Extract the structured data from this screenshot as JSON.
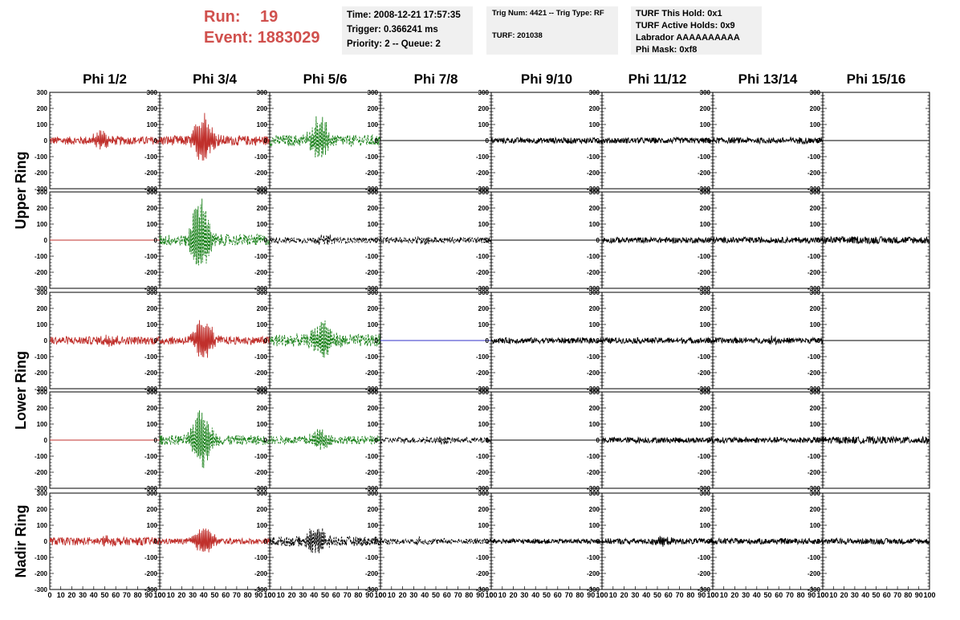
{
  "header": {
    "run_label": "Run:",
    "run_value": "19",
    "event_label": "Event:",
    "event_value": "1883029",
    "info1": [
      "Time: 2008-12-21 17:57:35",
      "Trigger: 0.366241 ms",
      "Priority: 2 -- Queue: 2"
    ],
    "info2": [
      "Trig Num: 4421 -- Trig Type: RF",
      "",
      "TURF: 201038"
    ],
    "info3": [
      "TURF This Hold: 0x1",
      "TURF Active Holds: 0x9",
      "Labrador AAAAAAAAAA",
      "Phi Mask: 0xf8"
    ]
  },
  "chart_data": {
    "type": "line",
    "columns": [
      "Phi 1/2",
      "Phi 3/4",
      "Phi 5/6",
      "Phi 7/8",
      "Phi 9/10",
      "Phi 11/12",
      "Phi 13/14",
      "Phi 15/16"
    ],
    "ring_labels": [
      {
        "label": "Upper Ring",
        "rows": [
          0,
          1
        ]
      },
      {
        "label": "Lower Ring",
        "rows": [
          2,
          3
        ]
      },
      {
        "label": "Nadir Ring",
        "rows": [
          4
        ]
      }
    ],
    "xlim": [
      0,
      100
    ],
    "ylim": [
      -300,
      300
    ],
    "y_ticks": [
      "300",
      "200",
      "100",
      "0",
      "-100",
      "-200",
      "-300"
    ],
    "x_tick_values": [
      0,
      10,
      20,
      30,
      40,
      50,
      60,
      70,
      80,
      90,
      100
    ],
    "x_tick_labels": [
      "0",
      "10",
      "20",
      "30",
      "40",
      "50",
      "60",
      "70",
      "80",
      "90",
      "100"
    ],
    "colors": {
      "red": "#c0302c",
      "green": "#188018",
      "black": "#000000",
      "blue": "#3030c8"
    },
    "panels": [
      [
        {
          "color": "red",
          "amp": 25,
          "burst": 55,
          "burst_center": 48,
          "dash": false
        },
        {
          "color": "red",
          "amp": 30,
          "burst": 180,
          "burst_center": 40,
          "dash": false
        },
        {
          "color": "green",
          "amp": 35,
          "burst": 150,
          "burst_center": 45,
          "dash": true
        },
        {
          "color": "black",
          "amp": 0,
          "burst": 0,
          "burst_center": 0,
          "dash": false
        },
        {
          "color": "black",
          "amp": 18,
          "burst": 0,
          "burst_center": 0,
          "dash": false
        },
        {
          "color": "black",
          "amp": 18,
          "burst": 0,
          "burst_center": 0,
          "dash": false
        },
        {
          "color": "black",
          "amp": 18,
          "burst": 10,
          "burst_center": 75,
          "dash": false
        },
        {
          "color": "black",
          "amp": 0,
          "burst": 0,
          "burst_center": 0,
          "dash": false
        }
      ],
      [
        {
          "color": "red",
          "amp": 0,
          "burst": 0,
          "burst_center": 0,
          "dash": false
        },
        {
          "color": "green",
          "amp": 35,
          "burst": 260,
          "burst_center": 37,
          "dash": true
        },
        {
          "color": "black",
          "amp": 18,
          "burst": 25,
          "burst_center": 50,
          "dash": true
        },
        {
          "color": "black",
          "amp": 18,
          "burst": 20,
          "burst_center": 40,
          "dash": true
        },
        {
          "color": "black",
          "amp": 0,
          "burst": 0,
          "burst_center": 0,
          "dash": false
        },
        {
          "color": "black",
          "amp": 18,
          "burst": 0,
          "burst_center": 0,
          "dash": false
        },
        {
          "color": "black",
          "amp": 18,
          "burst": 0,
          "burst_center": 0,
          "dash": false
        },
        {
          "color": "black",
          "amp": 22,
          "burst": 0,
          "burst_center": 0,
          "dash": false
        }
      ],
      [
        {
          "color": "red",
          "amp": 25,
          "burst": 25,
          "burst_center": 55,
          "dash": false
        },
        {
          "color": "red",
          "amp": 25,
          "burst": 150,
          "burst_center": 40,
          "dash": false
        },
        {
          "color": "green",
          "amp": 40,
          "burst": 120,
          "burst_center": 48,
          "dash": true
        },
        {
          "color": "blue",
          "amp": 0,
          "burst": 0,
          "burst_center": 0,
          "dash": false
        },
        {
          "color": "black",
          "amp": 18,
          "burst": 0,
          "burst_center": 0,
          "dash": false
        },
        {
          "color": "black",
          "amp": 18,
          "burst": 0,
          "burst_center": 0,
          "dash": false
        },
        {
          "color": "black",
          "amp": 18,
          "burst": 15,
          "burst_center": 55,
          "dash": false
        },
        {
          "color": "black",
          "amp": 0,
          "burst": 0,
          "burst_center": 0,
          "dash": false
        }
      ],
      [
        {
          "color": "red",
          "amp": 0,
          "burst": 0,
          "burst_center": 0,
          "dash": false
        },
        {
          "color": "green",
          "amp": 30,
          "burst": 220,
          "burst_center": 38,
          "dash": true
        },
        {
          "color": "green",
          "amp": 25,
          "burst": 70,
          "burst_center": 45,
          "dash": true
        },
        {
          "color": "black",
          "amp": 18,
          "burst": 20,
          "burst_center": 55,
          "dash": true
        },
        {
          "color": "black",
          "amp": 0,
          "burst": 0,
          "burst_center": 0,
          "dash": false
        },
        {
          "color": "black",
          "amp": 18,
          "burst": 0,
          "burst_center": 0,
          "dash": false
        },
        {
          "color": "black",
          "amp": 18,
          "burst": 0,
          "burst_center": 0,
          "dash": false
        },
        {
          "color": "black",
          "amp": 22,
          "burst": 0,
          "burst_center": 0,
          "dash": false
        }
      ],
      [
        {
          "color": "red",
          "amp": 25,
          "burst": 20,
          "burst_center": 50,
          "dash": false
        },
        {
          "color": "red",
          "amp": 18,
          "burst": 100,
          "burst_center": 40,
          "dash": false
        },
        {
          "color": "black",
          "amp": 30,
          "burst": 100,
          "burst_center": 43,
          "dash": true
        },
        {
          "color": "black",
          "amp": 18,
          "burst": 20,
          "burst_center": 35,
          "dash": true
        },
        {
          "color": "black",
          "amp": 15,
          "burst": 0,
          "burst_center": 0,
          "dash": false
        },
        {
          "color": "black",
          "amp": 18,
          "burst": 30,
          "burst_center": 52,
          "dash": false
        },
        {
          "color": "black",
          "amp": 18,
          "burst": 0,
          "burst_center": 0,
          "dash": false
        },
        {
          "color": "black",
          "amp": 18,
          "burst": 0,
          "burst_center": 0,
          "dash": false
        }
      ]
    ]
  }
}
